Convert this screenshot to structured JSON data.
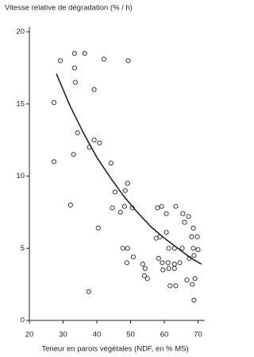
{
  "chart_data": {
    "type": "scatter",
    "title": "Vitesse relative de dégradation (% / h)",
    "x_label": "Teneur en parois végétales (NDF, en % MS)",
    "color": "#222222",
    "x": [
      29.2,
      33.4,
      36.4,
      42.1,
      49.3,
      33.4,
      33.6,
      27.3,
      39.2,
      34.3,
      39.2,
      40.8,
      37.8,
      33.1,
      27.3,
      44.2,
      49.1,
      45.4,
      48.4,
      48.2,
      32.2,
      47.0,
      50.5,
      40.4,
      44.6,
      47.7,
      49.1,
      50.8,
      48.9,
      37.6,
      53.6,
      54.1,
      55.0,
      54.3,
      58.0,
      59.2,
      60.6,
      63.4,
      65.5,
      67.2,
      66.0,
      68.6,
      69.8,
      68.1,
      60.6,
      58.7,
      57.6,
      61.3,
      63.0,
      65.3,
      68.6,
      70.0,
      68.8,
      67.4,
      59.4,
      61.1,
      63.0,
      61.3,
      63.0,
      59.6,
      61.7,
      63.4,
      66.7,
      69.1,
      68.3,
      68.8,
      64.6,
      58.3
    ],
    "values": [
      18.0,
      18.5,
      18.5,
      18.1,
      18.0,
      17.5,
      16.5,
      15.1,
      16.0,
      13.0,
      12.5,
      12.3,
      12.0,
      11.5,
      11.0,
      10.9,
      9.5,
      8.9,
      9.0,
      7.9,
      8.0,
      7.5,
      7.8,
      6.4,
      7.8,
      5.0,
      5.0,
      4.4,
      4.0,
      2.0,
      3.9,
      3.1,
      2.9,
      3.6,
      7.8,
      7.9,
      7.4,
      7.9,
      7.4,
      7.2,
      6.8,
      6.4,
      5.8,
      5.8,
      6.1,
      5.8,
      5.7,
      5.0,
      5.0,
      5.0,
      5.0,
      4.9,
      4.5,
      4.3,
      4.0,
      4.0,
      3.9,
      3.6,
      3.6,
      3.5,
      2.4,
      2.4,
      2.8,
      2.9,
      2.5,
      1.4,
      4.0,
      4.3
    ],
    "fit": {
      "x": [
        28,
        32,
        36,
        40,
        44,
        48,
        52,
        56,
        60,
        64,
        68,
        71
      ],
      "values": [
        17.1,
        14.9,
        13.0,
        11.3,
        9.9,
        8.6,
        7.5,
        6.5,
        5.7,
        5.0,
        4.3,
        3.9
      ]
    },
    "xlim": [
      20,
      72
    ],
    "xticks": [
      20,
      30,
      40,
      50,
      60,
      70
    ],
    "ylim": [
      0,
      20
    ],
    "yticks": [
      0,
      5,
      10,
      15,
      20
    ]
  }
}
